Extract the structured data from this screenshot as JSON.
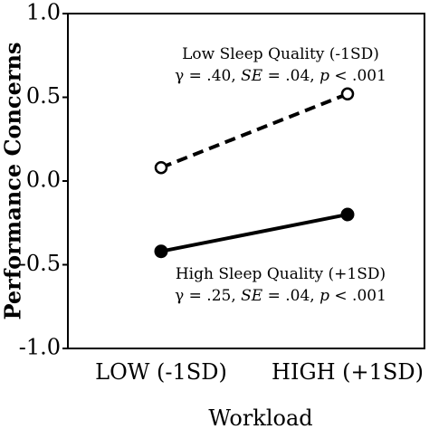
{
  "chart_data": {
    "type": "line",
    "categories": [
      "LOW (-1SD)",
      "HIGH (+1SD)"
    ],
    "xlabel": "Workload",
    "ylabel": "Performance Concerns",
    "ylim": [
      -1.0,
      1.0
    ],
    "yticks": [
      1.0,
      0.5,
      0.0,
      -0.5,
      -1.0
    ],
    "ytick_labels": [
      "1.0",
      "0.5",
      "0.0",
      "-0.5",
      "-1.0"
    ],
    "grid": false,
    "legend": "none",
    "series": [
      {
        "id": "low",
        "values": [
          0.08,
          0.52
        ],
        "line_style": "dashed",
        "marker": "open-circle",
        "color": "#000000",
        "annotation": {
          "line1": "Low Sleep Quality (-1SD)",
          "gamma": "γ = .40, ",
          "se_label": "SE",
          "se_value": " = .04, ",
          "p_label": "p",
          "p_value": " < .001"
        }
      },
      {
        "id": "high",
        "values": [
          -0.42,
          -0.2
        ],
        "line_style": "solid",
        "marker": "filled-circle",
        "color": "#000000",
        "annotation": {
          "line1": "High Sleep Quality (+1SD)",
          "gamma": "γ = .25, ",
          "se_label": "SE",
          "se_value": " = .04, ",
          "p_label": "p",
          "p_value": " < .001"
        }
      }
    ]
  }
}
